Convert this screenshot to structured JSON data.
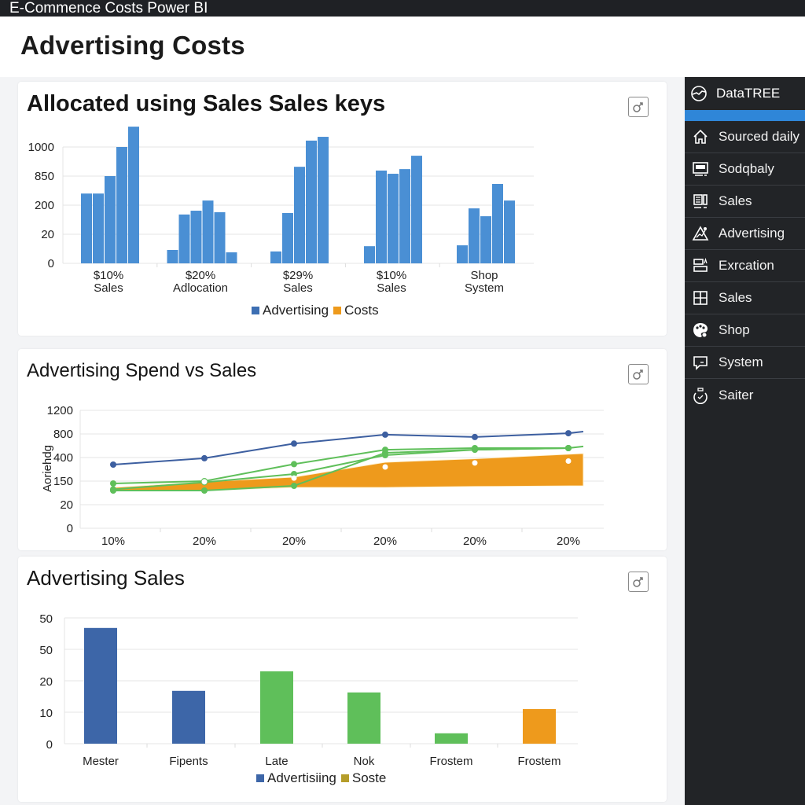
{
  "window": {
    "title": "E-Commence Costs Power BI"
  },
  "header": {
    "title": "Advertising Costs"
  },
  "sidebar": {
    "brand": {
      "label": "DataTREE",
      "icon": "gauge-icon"
    },
    "accent_color": "#2f86d8",
    "items": [
      {
        "label": "Sourced daily",
        "icon": "home-icon"
      },
      {
        "label": "Sodqbaly",
        "icon": "monitor-icon"
      },
      {
        "label": "Sales",
        "icon": "report-icon"
      },
      {
        "label": "Advertising",
        "icon": "chart-triangle-icon"
      },
      {
        "label": "Exrcation",
        "icon": "layout-icon"
      },
      {
        "label": "Sales",
        "icon": "grid-icon"
      },
      {
        "label": "Shop",
        "icon": "palette-icon"
      },
      {
        "label": "System",
        "icon": "message-icon"
      },
      {
        "label": "Saiter",
        "icon": "timer-icon"
      }
    ]
  },
  "cards": {
    "allocated": {
      "title": "Allocated using Sales Sales keys",
      "expand_icon": "expand-icon"
    },
    "spend": {
      "title": "Advertising Spend vs Sales",
      "expand_icon": "expand-icon"
    },
    "sales": {
      "title": "Advertising Sales",
      "expand_icon": "expand-icon"
    }
  },
  "colors": {
    "blue": "#4a8fd4",
    "dark_blue": "#3d66a8",
    "green": "#5fbf5a",
    "orange": "#ee9a1c",
    "olive": "#b59d2a",
    "grid": "#e3e3e3"
  },
  "chart_data": [
    {
      "type": "bar",
      "title": "Allocated using Sales Sales keys",
      "note": "Y-axis tick labels are evenly spaced but non-linear; values are expressed in tick-position units (0 = first tick '0', 4 = last tick '1000').",
      "yticks": [
        "0",
        "20",
        "200",
        "850",
        "1000"
      ],
      "ylim": [
        0,
        4.8
      ],
      "grid": true,
      "categories": [
        [
          "$10%",
          "Sales"
        ],
        [
          "$20%",
          "Adlocation"
        ],
        [
          "$29%",
          "Sales"
        ],
        [
          "$10%",
          "Sales"
        ],
        [
          "Shop",
          "System"
        ]
      ],
      "groups": [
        [
          2.4,
          2.4,
          3.0,
          4.0,
          4.7
        ],
        [
          0.46,
          1.68,
          1.81,
          2.16,
          1.76,
          0.38
        ],
        [
          0.41,
          1.73,
          3.32,
          4.22,
          4.35
        ],
        [
          0.59,
          3.19,
          3.08,
          3.24,
          3.7
        ],
        [
          0.62,
          1.89,
          1.62,
          2.73,
          2.16
        ]
      ],
      "legend": [
        {
          "label": "Advertising",
          "color": "#3d6fb3"
        },
        {
          "label": "Costs",
          "color": "#ee9a1c"
        }
      ],
      "legend_position": "bottom"
    },
    {
      "type": "line",
      "title": "Advertising Spend vs Sales",
      "ylabel": "Aoriehdg",
      "note": "Y-axis tick labels are evenly spaced but non-linear; values in tick-position units (0 = '0', 5 = '1200').",
      "yticks": [
        "0",
        "20",
        "150",
        "400",
        "800",
        "1200"
      ],
      "ylim": [
        0,
        5
      ],
      "grid": true,
      "x": [
        "10%",
        "20%",
        "20%",
        "20%",
        "20%",
        "20%"
      ],
      "series": [
        {
          "name": "blue-line",
          "color": "#3d5fa0",
          "values": [
            2.7,
            2.97,
            3.59,
            3.97,
            3.87,
            4.03
          ],
          "end_value": 4.1
        },
        {
          "name": "green-line-upper",
          "color": "#5fbf5a",
          "values": [
            1.9,
            2.0,
            2.72,
            3.33,
            3.4,
            3.4
          ],
          "end_value": 3.47
        },
        {
          "name": "green-line-lower",
          "color": "#5fbf5a",
          "values": [
            1.6,
            1.6,
            1.8,
            3.2,
            3.33,
            3.4
          ]
        },
        {
          "name": "green-line-mid",
          "color": "#5fbf5a",
          "values": [
            1.65,
            1.95,
            2.3,
            3.1,
            3.33,
            3.4
          ]
        },
        {
          "name": "orange-area",
          "color": "#ee9a1c",
          "type": "area",
          "upper": [
            1.73,
            1.97,
            2.17,
            2.8,
            2.95,
            3.17
          ],
          "lower": [
            1.6,
            1.6,
            1.73,
            1.73,
            1.77,
            1.8
          ]
        }
      ],
      "markers_white": [
        1.75,
        1.97,
        2.13,
        2.6,
        2.77,
        2.85
      ]
    },
    {
      "type": "bar",
      "title": "Advertising Sales",
      "note": "Y-axis tick labels evenly spaced; values in tick-position units (0 = '0', 4 = top '50').",
      "yticks": [
        "0",
        "10",
        "20",
        "50",
        "50"
      ],
      "ylim": [
        0,
        4
      ],
      "grid": true,
      "categories": [
        "Mester",
        "Fipents",
        "Late",
        "Nok",
        "Frostem",
        "Frostem"
      ],
      "values": [
        3.68,
        1.68,
        2.3,
        1.63,
        0.33,
        1.1
      ],
      "bar_colors": [
        "#3d66a8",
        "#3d66a8",
        "#5fbf5a",
        "#5fbf5a",
        "#5fbf5a",
        "#ee9a1c"
      ],
      "legend": [
        {
          "label": "Advertisiing",
          "color": "#3d66a8"
        },
        {
          "label": "Soste",
          "color": "#b59d2a"
        }
      ],
      "legend_position": "bottom"
    }
  ]
}
